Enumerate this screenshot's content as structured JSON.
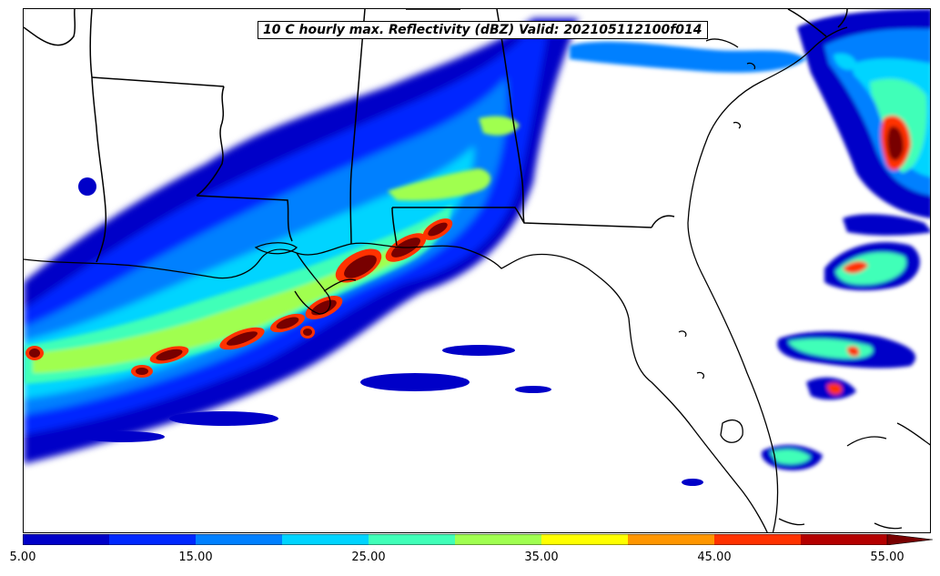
{
  "title": "10 C hourly max. Reflectivity (dBZ) Valid: 202105112100f014",
  "colorbar": {
    "ticks": [
      "5.00",
      "15.00",
      "25.00",
      "35.00",
      "45.00",
      "55.00"
    ],
    "tick_values": [
      5,
      15,
      25,
      35,
      45,
      55
    ],
    "min": 5,
    "max": 57.5,
    "extend": "max",
    "colors": [
      "#0000c8",
      "#0028ff",
      "#0080ff",
      "#00d4ff",
      "#40ffb8",
      "#a0ff50",
      "#ffff00",
      "#ff9600",
      "#ff3200",
      "#b40000",
      "#780000"
    ]
  },
  "palette": {
    "deep_blue": "#0000c8",
    "blue": "#0028ff",
    "light_blue": "#0080ff",
    "cyan": "#00d4ff",
    "aqua": "#40ffb8",
    "green": "#a0ff50",
    "yellow": "#ffff00",
    "orange": "#ff9600",
    "red": "#ff3200",
    "dark_red": "#b40000",
    "maroon": "#780000"
  }
}
